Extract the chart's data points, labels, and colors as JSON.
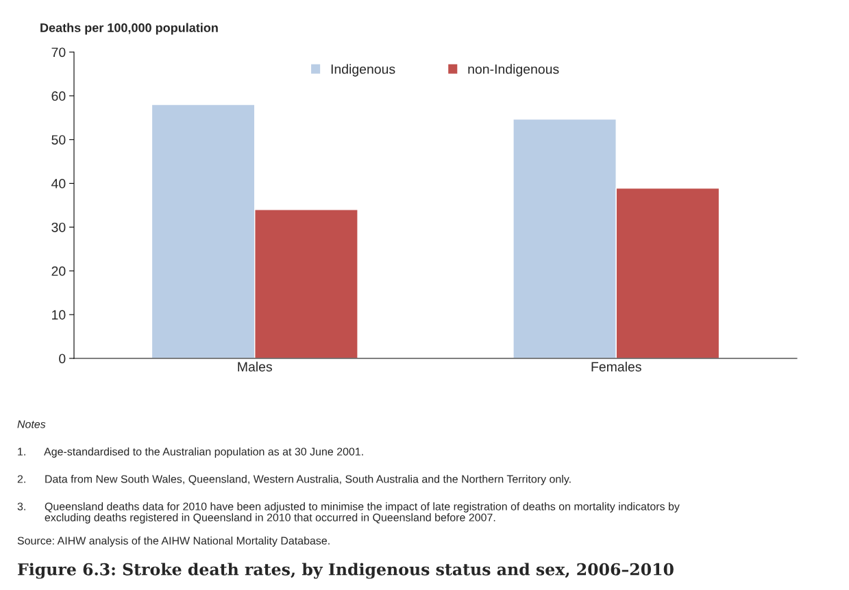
{
  "chart_data": {
    "type": "bar",
    "title": "Figure 6.3: Stroke death rates, by Indigenous status and sex, 2006–2010",
    "ylabel": "Deaths per 100,000 population",
    "categories": [
      "Males",
      "Females"
    ],
    "series": [
      {
        "name": "Indigenous",
        "color": "#b9cde5",
        "values": [
          58,
          54.7
        ]
      },
      {
        "name": "non-Indigenous",
        "color": "#c0504d",
        "values": [
          34,
          38.9
        ]
      }
    ],
    "ylim": [
      0,
      70
    ],
    "yticks": [
      0,
      10,
      20,
      30,
      40,
      50,
      60,
      70
    ],
    "grid": false,
    "legend": "top",
    "annotations": [
      "Notes",
      "1.      Age-standardised to the Australian population as at 30 June 2001.",
      "2.      Data from New South Wales, Queensland, Western Australia, South Australia and the Northern Territory only.",
      "3.      Queensland deaths data for 2010 have been adjusted to minimise the impact of late registration of deaths on mortality indicators by\n         excluding deaths registered in Queensland in 2010 that occurred in Queensland before 2007.",
      "Source: AIHW analysis of the AIHW National Mortality Database."
    ]
  }
}
